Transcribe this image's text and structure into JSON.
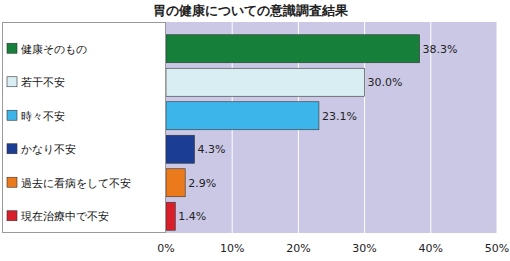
{
  "chart_data": {
    "type": "bar",
    "orientation": "horizontal",
    "title": "胃の健康についての意識調査結果",
    "categories": [
      "健康そのもの",
      "若干不安",
      "時々不安",
      "かなり不安",
      "過去に看病をして不安",
      "現在治療中で不安"
    ],
    "values": [
      38.3,
      30.0,
      23.1,
      4.3,
      2.9,
      1.4
    ],
    "value_labels": [
      "38.3%",
      "30.0%",
      "23.1%",
      "4.3%",
      "2.9%",
      "1.4%"
    ],
    "colors": [
      "#16803a",
      "#d8eef2",
      "#3cb6ea",
      "#1b3e94",
      "#ea7a1c",
      "#d81f2a"
    ],
    "xlim": [
      0,
      50
    ],
    "xticks": [
      {
        "value": 0,
        "label": "0%"
      },
      {
        "value": 10,
        "label": "10%"
      },
      {
        "value": 20,
        "label": "20%"
      },
      {
        "value": 30,
        "label": "30%"
      },
      {
        "value": 40,
        "label": "40%"
      },
      {
        "value": 50,
        "label": "50%"
      }
    ],
    "grid": true,
    "data_labels": true
  }
}
